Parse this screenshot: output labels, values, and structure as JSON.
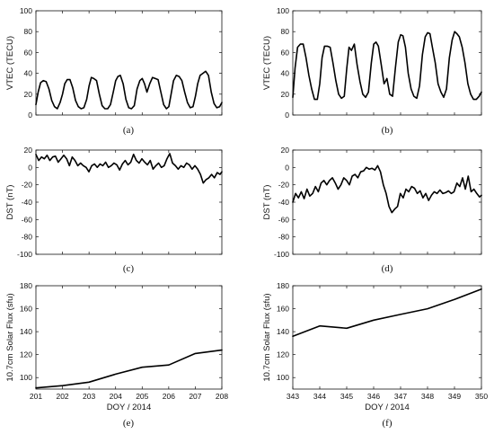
{
  "chart_data": [
    {
      "id": "a",
      "type": "line",
      "panel_label": "(a)",
      "xlabel": "",
      "ylabel": "VTEC (TECU)",
      "xlim": [
        0,
        1
      ],
      "ylim": [
        0,
        100
      ],
      "yticks": [
        0,
        20,
        40,
        60,
        80,
        100
      ],
      "yticklabels": [
        "0",
        "20",
        "40",
        "60",
        "80",
        "100"
      ],
      "xticks": [
        0,
        0.142857,
        0.285714,
        0.428571,
        0.571429,
        0.714286,
        0.857143,
        1
      ],
      "xticklabels": [],
      "series": [
        {
          "x": [
            0,
            0.012,
            0.025,
            0.04,
            0.055,
            0.07,
            0.085,
            0.1,
            0.115,
            0.13,
            0.143,
            0.155,
            0.168,
            0.183,
            0.198,
            0.213,
            0.228,
            0.243,
            0.258,
            0.273,
            0.286,
            0.298,
            0.311,
            0.326,
            0.341,
            0.356,
            0.371,
            0.386,
            0.401,
            0.416,
            0.429,
            0.441,
            0.454,
            0.469,
            0.484,
            0.499,
            0.514,
            0.529,
            0.544,
            0.559,
            0.572,
            0.584,
            0.597,
            0.612,
            0.627,
            0.642,
            0.657,
            0.672,
            0.687,
            0.702,
            0.715,
            0.727,
            0.74,
            0.755,
            0.77,
            0.785,
            0.8,
            0.815,
            0.83,
            0.845,
            0.858,
            0.87,
            0.883,
            0.898,
            0.913,
            0.928,
            0.943,
            0.958,
            0.973,
            0.988,
            1
          ],
          "y": [
            10,
            22,
            31,
            33,
            32,
            25,
            14,
            8,
            6,
            12,
            20,
            30,
            34,
            34,
            26,
            14,
            8,
            6,
            7,
            15,
            28,
            36,
            35,
            33,
            20,
            9,
            6,
            6,
            10,
            22,
            33,
            37,
            38,
            30,
            15,
            7,
            6,
            9,
            25,
            33,
            35,
            30,
            22,
            30,
            36,
            35,
            34,
            22,
            10,
            6,
            8,
            20,
            33,
            38,
            37,
            33,
            22,
            12,
            7,
            8,
            18,
            30,
            38,
            40,
            42,
            38,
            22,
            11,
            7,
            8,
            12
          ]
        }
      ]
    },
    {
      "id": "b",
      "type": "line",
      "panel_label": "(b)",
      "xlabel": "",
      "ylabel": "VTEC (TECU)",
      "xlim": [
        0,
        1
      ],
      "ylim": [
        0,
        100
      ],
      "yticks": [
        0,
        20,
        40,
        60,
        80,
        100
      ],
      "yticklabels": [
        "0",
        "20",
        "40",
        "60",
        "80",
        "100"
      ],
      "xticks": [
        0,
        0.142857,
        0.285714,
        0.428571,
        0.571429,
        0.714286,
        0.857143,
        1
      ],
      "xticklabels": [],
      "series": [
        {
          "x": [
            0,
            0.012,
            0.025,
            0.04,
            0.055,
            0.07,
            0.085,
            0.1,
            0.115,
            0.13,
            0.143,
            0.155,
            0.168,
            0.183,
            0.198,
            0.213,
            0.228,
            0.243,
            0.258,
            0.273,
            0.286,
            0.298,
            0.311,
            0.326,
            0.341,
            0.356,
            0.371,
            0.386,
            0.401,
            0.416,
            0.429,
            0.441,
            0.454,
            0.469,
            0.484,
            0.499,
            0.514,
            0.529,
            0.544,
            0.559,
            0.572,
            0.584,
            0.597,
            0.612,
            0.627,
            0.642,
            0.657,
            0.672,
            0.687,
            0.702,
            0.715,
            0.727,
            0.74,
            0.755,
            0.77,
            0.785,
            0.8,
            0.815,
            0.83,
            0.845,
            0.858,
            0.87,
            0.883,
            0.898,
            0.913,
            0.928,
            0.943,
            0.958,
            0.973,
            0.988,
            1
          ],
          "y": [
            17,
            45,
            65,
            68,
            68,
            55,
            38,
            25,
            15,
            15,
            30,
            55,
            66,
            66,
            65,
            50,
            33,
            20,
            16,
            18,
            45,
            65,
            62,
            68,
            48,
            32,
            20,
            17,
            22,
            50,
            68,
            70,
            66,
            48,
            30,
            35,
            20,
            18,
            45,
            70,
            77,
            76,
            65,
            40,
            25,
            18,
            16,
            28,
            58,
            75,
            79,
            78,
            65,
            50,
            30,
            22,
            17,
            25,
            55,
            72,
            80,
            78,
            75,
            65,
            50,
            30,
            20,
            15,
            15,
            18,
            22
          ]
        }
      ]
    },
    {
      "id": "c",
      "type": "line",
      "panel_label": "(c)",
      "xlabel": "",
      "ylabel": "DST (nT)",
      "xlim": [
        0,
        1
      ],
      "ylim": [
        -100,
        20
      ],
      "yticks": [
        -100,
        -80,
        -60,
        -40,
        -20,
        0,
        20
      ],
      "yticklabels": [
        "-100",
        "-80",
        "-60",
        "-40",
        "-20",
        "0",
        "20"
      ],
      "xticks": [
        0,
        0.142857,
        0.285714,
        0.428571,
        0.571429,
        0.714286,
        0.857143,
        1
      ],
      "xticklabels": [],
      "series": [
        {
          "x": [
            0,
            0.015,
            0.03,
            0.045,
            0.06,
            0.075,
            0.09,
            0.105,
            0.12,
            0.135,
            0.15,
            0.165,
            0.18,
            0.195,
            0.21,
            0.225,
            0.24,
            0.255,
            0.27,
            0.285,
            0.3,
            0.315,
            0.33,
            0.345,
            0.36,
            0.375,
            0.39,
            0.405,
            0.42,
            0.435,
            0.45,
            0.465,
            0.48,
            0.495,
            0.51,
            0.525,
            0.54,
            0.555,
            0.57,
            0.585,
            0.6,
            0.615,
            0.63,
            0.645,
            0.66,
            0.675,
            0.69,
            0.705,
            0.72,
            0.735,
            0.75,
            0.765,
            0.78,
            0.795,
            0.81,
            0.825,
            0.84,
            0.855,
            0.87,
            0.885,
            0.9,
            0.915,
            0.93,
            0.945,
            0.96,
            0.975,
            0.99,
            1
          ],
          "y": [
            15,
            8,
            12,
            10,
            14,
            8,
            12,
            13,
            6,
            10,
            14,
            10,
            2,
            12,
            8,
            2,
            5,
            2,
            0,
            -5,
            2,
            4,
            0,
            4,
            2,
            6,
            0,
            2,
            5,
            3,
            -3,
            4,
            8,
            3,
            6,
            15,
            8,
            5,
            10,
            6,
            3,
            8,
            -2,
            2,
            5,
            0,
            2,
            10,
            16,
            5,
            2,
            -2,
            2,
            0,
            5,
            3,
            -2,
            2,
            -2,
            -8,
            -18,
            -14,
            -12,
            -8,
            -12,
            -6,
            -8,
            -5
          ]
        }
      ]
    },
    {
      "id": "d",
      "type": "line",
      "panel_label": "(d)",
      "xlabel": "",
      "ylabel": "DST (nT)",
      "xlim": [
        0,
        1
      ],
      "ylim": [
        -100,
        20
      ],
      "yticks": [
        -100,
        -80,
        -60,
        -40,
        -20,
        0,
        20
      ],
      "yticklabels": [
        "-100",
        "-80",
        "-60",
        "-40",
        "-20",
        "0",
        "20"
      ],
      "xticks": [
        0,
        0.142857,
        0.285714,
        0.428571,
        0.571429,
        0.714286,
        0.857143,
        1
      ],
      "xticklabels": [],
      "series": [
        {
          "x": [
            0,
            0.015,
            0.03,
            0.045,
            0.06,
            0.075,
            0.09,
            0.105,
            0.12,
            0.135,
            0.15,
            0.165,
            0.18,
            0.195,
            0.21,
            0.225,
            0.24,
            0.255,
            0.27,
            0.285,
            0.3,
            0.315,
            0.33,
            0.345,
            0.36,
            0.375,
            0.39,
            0.405,
            0.42,
            0.435,
            0.45,
            0.465,
            0.48,
            0.495,
            0.51,
            0.525,
            0.54,
            0.555,
            0.57,
            0.585,
            0.6,
            0.615,
            0.63,
            0.645,
            0.66,
            0.675,
            0.69,
            0.705,
            0.72,
            0.735,
            0.75,
            0.765,
            0.78,
            0.795,
            0.81,
            0.825,
            0.84,
            0.855,
            0.87,
            0.885,
            0.9,
            0.915,
            0.93,
            0.945,
            0.96,
            0.975,
            0.99,
            1
          ],
          "y": [
            -40,
            -30,
            -35,
            -28,
            -36,
            -25,
            -33,
            -30,
            -22,
            -28,
            -18,
            -15,
            -20,
            -15,
            -12,
            -18,
            -25,
            -20,
            -12,
            -15,
            -20,
            -10,
            -8,
            -12,
            -5,
            -4,
            0,
            -2,
            -1,
            -3,
            2,
            -5,
            -20,
            -30,
            -45,
            -52,
            -48,
            -45,
            -30,
            -35,
            -25,
            -28,
            -22,
            -24,
            -30,
            -27,
            -35,
            -30,
            -38,
            -32,
            -28,
            -30,
            -26,
            -30,
            -29,
            -27,
            -30,
            -28,
            -18,
            -22,
            -12,
            -25,
            -10,
            -28,
            -25,
            -30,
            -34,
            -32
          ]
        }
      ]
    },
    {
      "id": "e",
      "type": "line",
      "panel_label": "(e)",
      "xlabel": "DOY / 2014",
      "ylabel": "10.7cm Solar Flux (sfu)",
      "xlim": [
        201,
        208
      ],
      "ylim": [
        90,
        180
      ],
      "yticks": [
        100,
        120,
        140,
        160,
        180
      ],
      "yticklabels": [
        "100",
        "120",
        "140",
        "160",
        "180"
      ],
      "xticks": [
        201,
        202,
        203,
        204,
        205,
        206,
        207,
        208
      ],
      "xticklabels": [
        "201",
        "202",
        "203",
        "204",
        "205",
        "206",
        "207",
        "208"
      ],
      "series": [
        {
          "x": [
            201,
            202,
            203,
            204,
            205,
            206,
            207,
            208
          ],
          "y": [
            91,
            93,
            96,
            103,
            109,
            111,
            121,
            124
          ]
        }
      ]
    },
    {
      "id": "f",
      "type": "line",
      "panel_label": "(f)",
      "xlabel": "DOY / 2014",
      "ylabel": "10.7cm Solar Flux (sfu)",
      "xlim": [
        343,
        350
      ],
      "ylim": [
        90,
        180
      ],
      "yticks": [
        100,
        120,
        140,
        160,
        180
      ],
      "yticklabels": [
        "100",
        "120",
        "140",
        "160",
        "180"
      ],
      "xticks": [
        343,
        344,
        345,
        346,
        347,
        348,
        349,
        350
      ],
      "xticklabels": [
        "343",
        "344",
        "345",
        "346",
        "347",
        "348",
        "349",
        "350"
      ],
      "series": [
        {
          "x": [
            343,
            344,
            345,
            346,
            347,
            348,
            349,
            350
          ],
          "y": [
            136,
            145,
            143,
            150,
            155,
            160,
            168,
            177
          ]
        }
      ]
    }
  ]
}
